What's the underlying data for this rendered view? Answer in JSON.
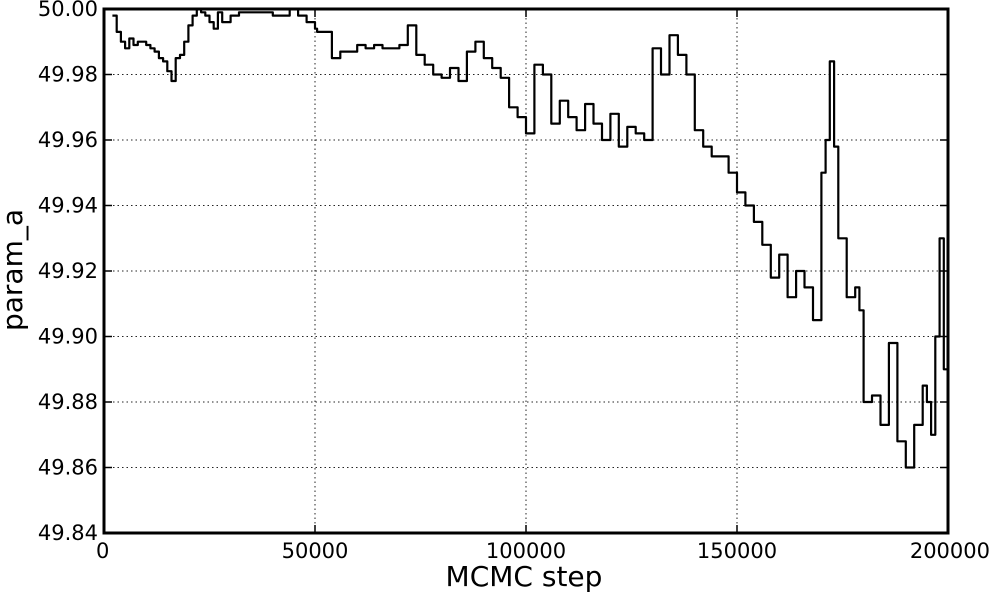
{
  "chart_data": {
    "type": "line",
    "title": "",
    "xlabel": "MCMC step",
    "ylabel": "param_a",
    "xlim": [
      0,
      200000
    ],
    "ylim": [
      49.84,
      50.0
    ],
    "xticks": [
      0,
      50000,
      100000,
      150000,
      200000
    ],
    "xtick_labels": [
      "0",
      "50000",
      "100000",
      "150000",
      "200000"
    ],
    "yticks": [
      49.84,
      49.86,
      49.88,
      49.9,
      49.92,
      49.94,
      49.96,
      49.98,
      50.0
    ],
    "ytick_labels": [
      "49.84",
      "49.86",
      "49.88",
      "49.90",
      "49.92",
      "49.94",
      "49.96",
      "49.98",
      "50.00"
    ],
    "grid": true,
    "line_color": "#000000",
    "series": [
      {
        "x": [
          2000,
          3000,
          4000,
          5000,
          6000,
          7000,
          8000,
          9000,
          10000,
          11000,
          12000,
          13000,
          14000,
          15000,
          16000,
          17000,
          18000,
          19000,
          20000,
          21000,
          22000,
          23000,
          24000,
          25000,
          26000,
          27000,
          28000,
          30000,
          32000,
          34000,
          36000,
          38000,
          40000,
          42000,
          44000,
          46000,
          48000,
          50000,
          50500,
          52000,
          54000,
          56000,
          58000,
          60000,
          62000,
          64000,
          66000,
          68000,
          70000,
          72000,
          74000,
          76000,
          78000,
          80000,
          82000,
          84000,
          86000,
          88000,
          90000,
          92000,
          94000,
          96000,
          98000,
          100000,
          102000,
          104000,
          106000,
          108000,
          110000,
          112000,
          114000,
          116000,
          118000,
          120000,
          122000,
          124000,
          126000,
          128000,
          130000,
          132000,
          134000,
          136000,
          138000,
          140000,
          142000,
          144000,
          146000,
          148000,
          150000,
          152000,
          154000,
          156000,
          158000,
          160000,
          162000,
          164000,
          166000,
          168000,
          170000,
          171000,
          172000,
          173000,
          174000,
          176000,
          178000,
          179000,
          180000,
          182000,
          184000,
          186000,
          188000,
          190000,
          192000,
          194000,
          195000,
          196000,
          197000,
          198000,
          199000,
          200000
        ],
        "y": [
          49.998,
          49.993,
          49.99,
          49.988,
          49.991,
          49.989,
          49.99,
          49.99,
          49.989,
          49.988,
          49.987,
          49.985,
          49.984,
          49.981,
          49.978,
          49.985,
          49.986,
          49.99,
          49.995,
          49.998,
          50.0,
          49.999,
          49.998,
          49.996,
          49.994,
          49.999,
          49.996,
          49.998,
          49.999,
          49.999,
          49.999,
          49.999,
          49.998,
          49.998,
          50.0,
          49.998,
          49.996,
          49.994,
          49.993,
          49.993,
          49.985,
          49.987,
          49.987,
          49.989,
          49.988,
          49.989,
          49.988,
          49.988,
          49.989,
          49.995,
          49.986,
          49.983,
          49.98,
          49.979,
          49.982,
          49.978,
          49.987,
          49.99,
          49.985,
          49.982,
          49.979,
          49.97,
          49.967,
          49.962,
          49.983,
          49.98,
          49.965,
          49.972,
          49.967,
          49.963,
          49.971,
          49.965,
          49.96,
          49.968,
          49.958,
          49.964,
          49.962,
          49.96,
          49.988,
          49.98,
          49.992,
          49.986,
          49.98,
          49.963,
          49.958,
          49.955,
          49.955,
          49.95,
          49.944,
          49.94,
          49.935,
          49.928,
          49.918,
          49.925,
          49.912,
          49.92,
          49.915,
          49.905,
          49.95,
          49.96,
          49.984,
          49.958,
          49.93,
          49.912,
          49.915,
          49.908,
          49.88,
          49.882,
          49.873,
          49.898,
          49.868,
          49.86,
          49.873,
          49.885,
          49.88,
          49.87,
          49.9,
          49.93,
          49.89,
          49.855
        ]
      }
    ]
  }
}
